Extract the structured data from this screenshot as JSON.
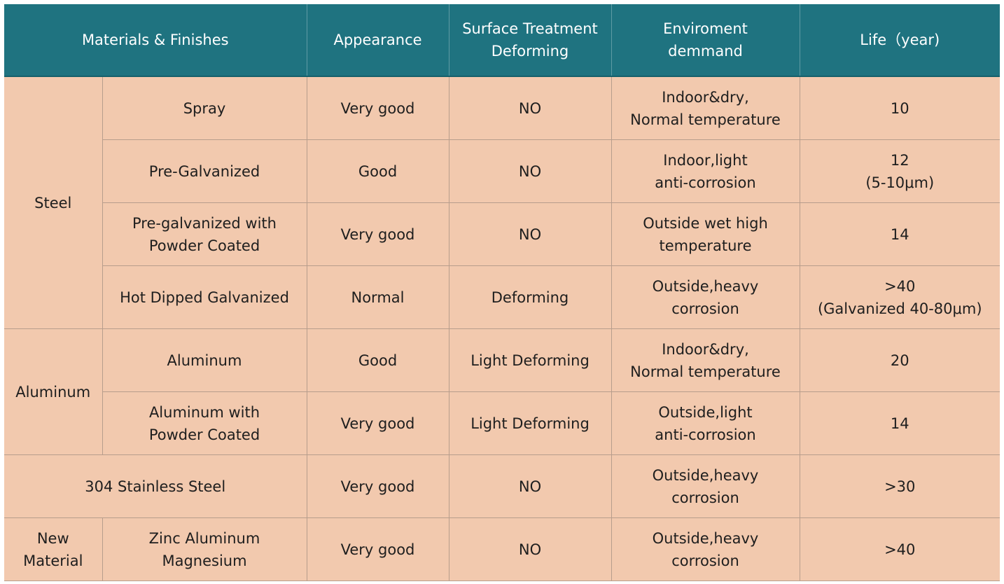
{
  "headers": {
    "materials": "Materials & Finishes",
    "appearance": "Appearance",
    "surface": "Surface Treatment\nDeforming",
    "environment": "Enviroment\ndemmand",
    "life": "Life（year)"
  },
  "groups": {
    "steel": "Steel",
    "aluminum": "Aluminum",
    "stainless": "304 Stainless Steel",
    "new_material": "New\nMaterial"
  },
  "rows": [
    {
      "finish": "Spray",
      "appearance": "Very good",
      "surface": "NO",
      "environment": "Indoor&dry,\nNormal temperature",
      "life": "10"
    },
    {
      "finish": "Pre-Galvanized",
      "appearance": "Good",
      "surface": "NO",
      "environment": "Indoor,light\nanti-corrosion",
      "life": "12\n(5-10μm)"
    },
    {
      "finish": "Pre-galvanized with\nPowder Coated",
      "appearance": "Very good",
      "surface": "NO",
      "environment": "Outside wet high\ntemperature",
      "life": "14"
    },
    {
      "finish": "Hot Dipped Galvanized",
      "appearance": "Normal",
      "surface": "Deforming",
      "environment": "Outside,heavy\ncorrosion",
      "life": ">40\n(Galvanized 40-80μm)"
    },
    {
      "finish": "Aluminum",
      "appearance": "Good",
      "surface": "Light Deforming",
      "environment": "Indoor&dry,\nNormal temperature",
      "life": "20"
    },
    {
      "finish": "Aluminum  with\nPowder Coated",
      "appearance": "Very good",
      "surface": "Light Deforming",
      "environment": "Outside,light\nanti-corrosion",
      "life": "14"
    },
    {
      "finish": "",
      "appearance": "Very good",
      "surface": "NO",
      "environment": "Outside,heavy\ncorrosion",
      "life": ">30"
    },
    {
      "finish": "Zinc Aluminum\nMagnesium",
      "appearance": "Very good",
      "surface": "NO",
      "environment": "Outside,heavy\ncorrosion",
      "life": ">40"
    }
  ],
  "colors": {
    "header_bg": "#1f7380",
    "body_bg": "#f2c9ae",
    "grid_line": "#b79d8c"
  }
}
